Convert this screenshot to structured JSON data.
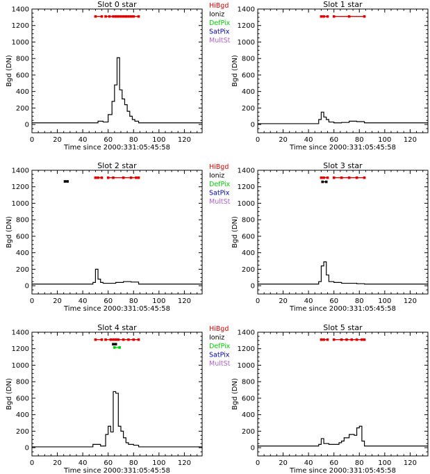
{
  "legend": {
    "labels": [
      "HiBgd",
      "Ioniz",
      "DefPix",
      "SatPix",
      "MultSt"
    ],
    "colors": [
      "#e00000",
      "#000000",
      "#00d000",
      "#0000c0",
      "#b060d0"
    ]
  },
  "chart_data": [
    {
      "type": "line",
      "title": "Slot 0 star",
      "xlabel": "Time since 2000:331:05:45:58",
      "ylabel": "Bgd (DN)",
      "xlim": [
        0,
        134
      ],
      "ylim": [
        -100,
        1400
      ],
      "xticks": [
        "0",
        "20",
        "40",
        "60",
        "80",
        "100",
        "120"
      ],
      "yticks": [
        "0",
        "200",
        "400",
        "600",
        "800",
        "1000",
        "1200",
        "1400"
      ],
      "show_legend": true,
      "series": [
        {
          "x": [
            0,
            52,
            56,
            60,
            63,
            65,
            67,
            69,
            71,
            73,
            75,
            77,
            79,
            81,
            84,
            134
          ],
          "y": [
            20,
            40,
            30,
            120,
            280,
            480,
            810,
            420,
            310,
            240,
            160,
            100,
            60,
            40,
            20,
            20
          ]
        }
      ],
      "flags": [
        {
          "flag": "HiBgd",
          "y": 1310,
          "segments": [
            [
              50,
              55
            ],
            [
              58,
              84
            ]
          ],
          "points": [
            50,
            55,
            58,
            61,
            64,
            66,
            68,
            70,
            72,
            74,
            76,
            78,
            80,
            84
          ]
        }
      ]
    },
    {
      "type": "line",
      "title": "Slot 1 star",
      "xlabel": "Time since 2000:331:05:45:58",
      "ylabel": "Bgd (DN)",
      "xlim": [
        0,
        134
      ],
      "ylim": [
        -100,
        1400
      ],
      "xticks": [
        "0",
        "20",
        "40",
        "60",
        "80",
        "100",
        "120"
      ],
      "yticks": [
        "0",
        "200",
        "400",
        "600",
        "800",
        "1000",
        "1200",
        "1400"
      ],
      "show_legend": false,
      "series": [
        {
          "x": [
            0,
            48,
            50,
            52,
            54,
            56,
            60,
            66,
            72,
            78,
            84,
            134
          ],
          "y": [
            10,
            60,
            150,
            90,
            60,
            30,
            20,
            25,
            40,
            35,
            20,
            20
          ]
        }
      ],
      "flags": [
        {
          "flag": "HiBgd",
          "y": 1310,
          "segments": [
            [
              50,
              55
            ],
            [
              60,
              84
            ]
          ],
          "points": [
            50,
            52,
            55,
            60,
            72,
            84
          ]
        }
      ]
    },
    {
      "type": "line",
      "title": "Slot 2 star",
      "xlabel": "Time since 2000:331:05:45:58",
      "ylabel": "Bgd (DN)",
      "xlim": [
        0,
        134
      ],
      "ylim": [
        -100,
        1400
      ],
      "xticks": [
        "0",
        "20",
        "40",
        "60",
        "80",
        "100",
        "120"
      ],
      "yticks": [
        "0",
        "200",
        "400",
        "600",
        "800",
        "1000",
        "1200",
        "1400"
      ],
      "show_legend": true,
      "series": [
        {
          "x": [
            0,
            48,
            50,
            52,
            54,
            56,
            60,
            66,
            72,
            78,
            84,
            134
          ],
          "y": [
            20,
            40,
            200,
            80,
            40,
            30,
            30,
            40,
            50,
            45,
            20,
            20
          ]
        }
      ],
      "flags": [
        {
          "flag": "HiBgd",
          "y": 1310,
          "segments": [
            [
              50,
              55
            ],
            [
              60,
              84
            ]
          ],
          "points": [
            50,
            52,
            55,
            60,
            64,
            72,
            78,
            82,
            84
          ]
        },
        {
          "flag": "Ioniz",
          "y": 1265,
          "segments": [
            [
              26,
              28
            ]
          ],
          "points": [
            26,
            28
          ]
        }
      ]
    },
    {
      "type": "line",
      "title": "Slot 3 star",
      "xlabel": "Time since 2000:331:05:45:58",
      "ylabel": "Bgd (DN)",
      "xlim": [
        0,
        134
      ],
      "ylim": [
        -100,
        1400
      ],
      "xticks": [
        "0",
        "20",
        "40",
        "60",
        "80",
        "100",
        "120"
      ],
      "yticks": [
        "0",
        "200",
        "400",
        "600",
        "800",
        "1000",
        "1200",
        "1400"
      ],
      "show_legend": false,
      "series": [
        {
          "x": [
            0,
            48,
            50,
            52,
            54,
            56,
            60,
            66,
            72,
            78,
            84,
            134
          ],
          "y": [
            20,
            50,
            240,
            290,
            130,
            50,
            40,
            30,
            30,
            25,
            20,
            20
          ]
        }
      ],
      "flags": [
        {
          "flag": "HiBgd",
          "y": 1310,
          "segments": [
            [
              50,
              55
            ],
            [
              60,
              84
            ]
          ],
          "points": [
            50,
            52,
            55,
            60,
            66,
            72,
            78,
            84
          ]
        },
        {
          "flag": "Ioniz",
          "y": 1260,
          "segments": [
            [
              51,
              54
            ]
          ],
          "points": [
            51,
            54
          ]
        }
      ]
    },
    {
      "type": "line",
      "title": "Slot 4 star",
      "xlabel": "Time since 2000:331:05:45:58",
      "ylabel": "Bgd (DN)",
      "xlim": [
        0,
        134
      ],
      "ylim": [
        -100,
        1400
      ],
      "xticks": [
        "0",
        "20",
        "40",
        "60",
        "80",
        "100",
        "120"
      ],
      "yticks": [
        "0",
        "200",
        "400",
        "600",
        "800",
        "1000",
        "1200",
        "1400"
      ],
      "show_legend": true,
      "series": [
        {
          "x": [
            0,
            48,
            54,
            58,
            60,
            62,
            64,
            66,
            68,
            70,
            72,
            74,
            76,
            80,
            84,
            134
          ],
          "y": [
            10,
            40,
            20,
            160,
            260,
            190,
            680,
            660,
            260,
            200,
            120,
            60,
            40,
            30,
            10,
            10
          ]
        }
      ],
      "flags": [
        {
          "flag": "HiBgd",
          "y": 1310,
          "segments": [
            [
              50,
              55
            ],
            [
              58,
              84
            ]
          ],
          "points": [
            50,
            55,
            58,
            62,
            64,
            66,
            68,
            72,
            76,
            80,
            84
          ]
        },
        {
          "flag": "Ioniz",
          "y": 1255,
          "segments": [
            [
              64,
              66
            ]
          ],
          "points": [
            64,
            66
          ]
        },
        {
          "flag": "DefPix",
          "y": 1215,
          "segments": [
            [
              65,
              69
            ]
          ],
          "points": [
            65,
            69
          ]
        }
      ]
    },
    {
      "type": "line",
      "title": "Slot 5 star",
      "xlabel": "Time since 2000:331:05:45:58",
      "ylabel": "Bgd (DN)",
      "xlim": [
        0,
        134
      ],
      "ylim": [
        -100,
        1400
      ],
      "xticks": [
        "0",
        "20",
        "40",
        "60",
        "80",
        "100",
        "120"
      ],
      "yticks": [
        "0",
        "200",
        "400",
        "600",
        "800",
        "1000",
        "1200",
        "1400"
      ],
      "show_legend": false,
      "series": [
        {
          "x": [
            0,
            48,
            50,
            52,
            56,
            60,
            64,
            66,
            68,
            72,
            76,
            78,
            80,
            82,
            84,
            134
          ],
          "y": [
            20,
            40,
            110,
            50,
            40,
            40,
            60,
            80,
            120,
            160,
            150,
            240,
            260,
            80,
            20,
            20
          ]
        }
      ],
      "flags": [
        {
          "flag": "HiBgd",
          "y": 1310,
          "segments": [
            [
              50,
              55
            ],
            [
              60,
              84
            ]
          ],
          "points": [
            50,
            52,
            55,
            60,
            66,
            70,
            74,
            78,
            82,
            84
          ]
        }
      ]
    }
  ]
}
